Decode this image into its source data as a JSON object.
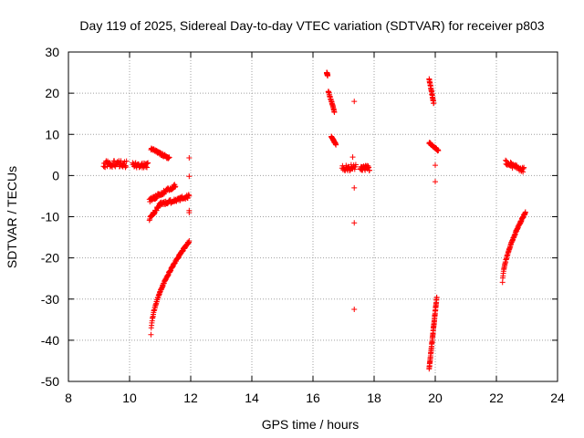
{
  "chart_data": {
    "type": "scatter",
    "title": "Day 119 of 2025, Sidereal Day-to-day VTEC variation (SDTVAR) for receiver p803",
    "xlabel": "GPS time / hours",
    "ylabel": "SDTVAR / TECUs",
    "xlim": [
      8,
      24
    ],
    "ylim": [
      -50,
      30
    ],
    "xticks": [
      "8",
      "10",
      "12",
      "14",
      "16",
      "18",
      "20",
      "22",
      "24"
    ],
    "yticks": [
      "30",
      "20",
      "10",
      "0",
      "-10",
      "-20",
      "-30",
      "-40",
      "-50"
    ],
    "grid": true,
    "marker": "+",
    "colors": {
      "points": "#ff0000",
      "grid": "#a0a0a0",
      "axis": "#000000"
    },
    "segments": [
      {
        "x": [
          9.15,
          9.9
        ],
        "y": [
          2.8,
          2.8
        ],
        "spread": 1.6
      },
      {
        "x": [
          10.1,
          10.6
        ],
        "y": [
          2.5,
          2.5
        ],
        "spread": 1.2
      },
      {
        "x": [
          10.7,
          11.3
        ],
        "y": [
          6.5,
          4.2
        ],
        "spread": 0.6
      },
      {
        "x": [
          10.65,
          11.5
        ],
        "y": [
          -6.0,
          -2.5
        ],
        "spread": 0.9
      },
      {
        "x": [
          10.65,
          11.0
        ],
        "y": [
          -10.5,
          -7.0
        ],
        "spread": 0.8
      },
      {
        "x": [
          11.0,
          11.95
        ],
        "y": [
          -7.0,
          -5.0
        ],
        "spread": 0.9
      },
      {
        "x": [
          10.7,
          11.95
        ],
        "y": [
          -38.5,
          -16.0
        ],
        "spread": 0.4,
        "curve": 0.55
      },
      {
        "x": [
          16.45,
          16.48
        ],
        "y": [
          25.0,
          24.3
        ],
        "spread": 0.3
      },
      {
        "x": [
          16.5,
          16.7
        ],
        "y": [
          20.5,
          15.5
        ],
        "spread": 0.4
      },
      {
        "x": [
          16.6,
          16.75
        ],
        "y": [
          9.5,
          7.5
        ],
        "spread": 0.3
      },
      {
        "x": [
          16.95,
          17.4
        ],
        "y": [
          2.0,
          2.0
        ],
        "spread": 1.6
      },
      {
        "x": [
          17.55,
          17.85
        ],
        "y": [
          1.8,
          1.8
        ],
        "spread": 1.2
      },
      {
        "x": [
          19.8,
          19.95
        ],
        "y": [
          23.5,
          17.5
        ],
        "spread": 0.4
      },
      {
        "x": [
          19.8,
          20.1
        ],
        "y": [
          8.0,
          6.0
        ],
        "spread": 0.4
      },
      {
        "x": [
          19.8,
          20.05
        ],
        "y": [
          -47.0,
          -29.5
        ],
        "spread": 0.3
      },
      {
        "x": [
          22.3,
          22.9
        ],
        "y": [
          3.0,
          1.5
        ],
        "spread": 1.4
      },
      {
        "x": [
          22.2,
          22.95
        ],
        "y": [
          -26.0,
          -9.0
        ],
        "spread": 0.4,
        "curve": 0.6
      }
    ],
    "points": [
      {
        "x": 11.95,
        "y": 4.3
      },
      {
        "x": 11.95,
        "y": -0.2
      },
      {
        "x": 11.95,
        "y": -8.5
      },
      {
        "x": 11.95,
        "y": -9.0
      },
      {
        "x": 17.3,
        "y": 4.5
      },
      {
        "x": 17.35,
        "y": 18.0
      },
      {
        "x": 17.35,
        "y": -3.0
      },
      {
        "x": 17.35,
        "y": -11.5
      },
      {
        "x": 17.35,
        "y": -32.5
      },
      {
        "x": 20.0,
        "y": 2.5
      },
      {
        "x": 20.0,
        "y": -1.5
      }
    ]
  }
}
